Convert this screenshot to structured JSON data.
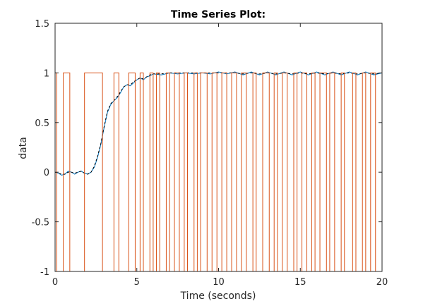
{
  "chart_data": {
    "type": "line",
    "title": "Time Series Plot:",
    "xlabel": "Time (seconds)",
    "ylabel": "data",
    "xlim": [
      0,
      20
    ],
    "ylim": [
      -1,
      1.5
    ],
    "xticks": [
      0,
      5,
      10,
      15,
      20
    ],
    "yticks": [
      -1,
      -0.5,
      0,
      0.5,
      1,
      1.5
    ],
    "xtick_labels": [
      "0",
      "5",
      "10",
      "15",
      "20"
    ],
    "ytick_labels": [
      "-1",
      "-0.5",
      "0",
      "0.5",
      "1",
      "1.5"
    ],
    "grid": false,
    "colors": {
      "response": "#0072BD",
      "reference": "#D95319",
      "axes": "#262626"
    },
    "series": [
      {
        "style": "solid",
        "x": [
          0,
          0.2,
          0.4,
          0.6,
          0.8,
          1.0,
          1.2,
          1.4,
          1.6,
          1.8,
          2.0,
          2.2,
          2.4,
          2.6,
          2.8,
          3.0,
          3.2,
          3.4,
          3.6,
          3.8,
          4.0,
          4.2,
          4.4,
          4.6,
          4.8,
          5.0,
          5.2,
          5.4,
          5.6,
          5.8,
          6.0,
          6.5,
          7.0,
          7.5,
          8.0,
          8.5,
          9.0,
          9.5,
          10.0,
          10.5,
          11.0,
          11.5,
          12.0,
          12.5,
          13.0,
          13.5,
          14.0,
          14.5,
          15.0,
          15.5,
          16.0,
          16.5,
          17.0,
          17.5,
          18.0,
          18.5,
          19.0,
          19.5,
          20.0
        ],
        "y": [
          0,
          -0.01,
          -0.03,
          -0.02,
          0.01,
          0.0,
          -0.02,
          0.0,
          0.01,
          -0.01,
          -0.02,
          0.0,
          0.05,
          0.15,
          0.28,
          0.45,
          0.6,
          0.68,
          0.72,
          0.75,
          0.8,
          0.86,
          0.88,
          0.87,
          0.9,
          0.93,
          0.95,
          0.93,
          0.96,
          0.97,
          0.99,
          0.98,
          1.0,
          0.99,
          1.0,
          0.99,
          1.0,
          0.99,
          1.01,
          0.99,
          1.01,
          0.98,
          1.01,
          0.98,
          1.01,
          0.98,
          1.01,
          0.98,
          1.01,
          0.98,
          1.01,
          0.98,
          1.01,
          0.98,
          1.01,
          0.98,
          1.01,
          0.98,
          1.0
        ]
      },
      {
        "style": "dashed",
        "x": [
          0,
          0.2,
          0.4,
          0.6,
          0.8,
          1.0,
          1.2,
          1.4,
          1.6,
          1.8,
          2.0,
          2.2,
          2.4,
          2.6,
          2.8,
          3.0,
          3.2,
          3.4,
          3.6,
          3.8,
          4.0,
          4.2,
          4.4,
          4.6,
          4.8,
          5.0,
          5.2,
          5.4,
          5.6,
          5.8,
          6.0,
          6.5,
          7.0,
          7.5,
          8.0,
          8.5,
          9.0,
          9.5,
          10.0,
          10.5,
          11.0,
          11.5,
          12.0,
          12.5,
          13.0,
          13.5,
          14.0,
          14.5,
          15.0,
          15.5,
          16.0,
          16.5,
          17.0,
          17.5,
          18.0,
          18.5,
          19.0,
          19.5,
          20.0
        ],
        "y": [
          0,
          -0.01,
          -0.02,
          -0.02,
          0.0,
          0.0,
          -0.01,
          0.0,
          0.01,
          -0.01,
          -0.02,
          0.0,
          0.06,
          0.16,
          0.29,
          0.46,
          0.61,
          0.69,
          0.72,
          0.76,
          0.81,
          0.86,
          0.88,
          0.88,
          0.91,
          0.93,
          0.95,
          0.94,
          0.96,
          0.98,
          0.99,
          0.99,
          1.0,
          1.0,
          1.0,
          1.0,
          1.0,
          1.0,
          1.0,
          1.0,
          1.0,
          0.99,
          1.0,
          0.99,
          1.0,
          0.99,
          1.0,
          0.99,
          1.0,
          0.99,
          1.0,
          0.99,
          1.0,
          0.99,
          1.0,
          0.99,
          1.0,
          0.99,
          1.0
        ]
      },
      {
        "style": "step",
        "x": [
          0,
          0.1,
          0.5,
          0.9,
          1.8,
          2.9,
          3.6,
          3.9,
          4.5,
          4.9,
          5.2,
          5.4,
          5.8,
          6.0,
          6.2,
          6.4,
          6.8,
          7.0,
          7.3,
          7.6,
          7.9,
          8.1,
          8.5,
          8.7,
          8.9,
          9.3,
          9.6,
          9.9,
          10.2,
          10.5,
          10.8,
          11.1,
          11.4,
          11.7,
          12.1,
          12.3,
          12.7,
          13.1,
          13.4,
          13.6,
          13.9,
          14.2,
          14.6,
          14.8,
          15.1,
          15.4,
          15.7,
          15.9,
          16.2,
          16.6,
          16.8,
          17.1,
          17.5,
          17.7,
          18.2,
          18.4,
          18.8,
          19.0,
          19.3,
          19.6,
          20.0
        ],
        "y": [
          1,
          -1,
          1,
          -1,
          1,
          -1,
          1,
          -1,
          1,
          -1,
          1,
          -1,
          1,
          -1,
          1,
          -1,
          1,
          -1,
          1,
          -1,
          1,
          -1,
          1,
          -1,
          1,
          -1,
          1,
          -1,
          1,
          -1,
          1,
          -1,
          1,
          -1,
          1,
          -1,
          1,
          -1,
          1,
          -1,
          1,
          -1,
          1,
          -1,
          1,
          -1,
          1,
          -1,
          1,
          -1,
          1,
          -1,
          1,
          -1,
          1,
          -1,
          1,
          -1,
          1,
          -1,
          1
        ]
      }
    ]
  }
}
